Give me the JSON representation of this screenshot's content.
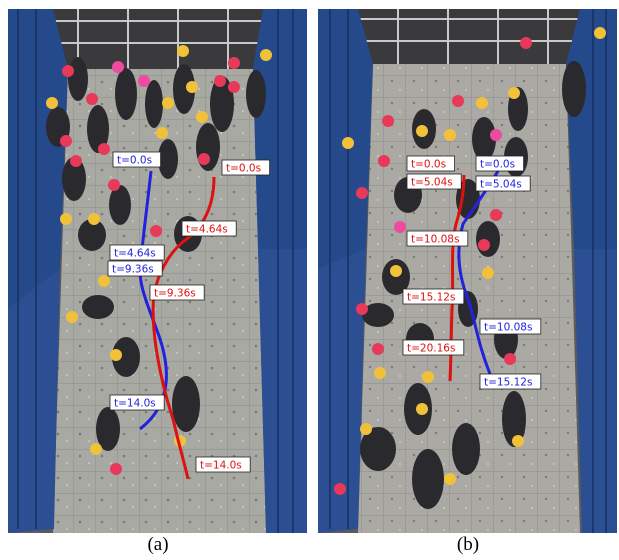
{
  "colors": {
    "participant_a": "#2222dd",
    "participant_b": "#dd1111",
    "helmet_red": "#e8395a",
    "helmet_yellow": "#f2c13a",
    "helmet_pink": "#ee4aa0",
    "wall_blue": "#244a8c",
    "floor": "#a7a7a2"
  },
  "panels": [
    {
      "caption": "(a)",
      "labels": [
        {
          "text": "t=0.0s",
          "color": "blue"
        },
        {
          "text": "t=0.0s",
          "color": "red"
        },
        {
          "text": "t=4.64s",
          "color": "red"
        },
        {
          "text": "t=4.64s",
          "color": "blue"
        },
        {
          "text": "t=9.36s",
          "color": "blue"
        },
        {
          "text": "t=9.36s",
          "color": "red"
        },
        {
          "text": "t=14.0s",
          "color": "blue"
        },
        {
          "text": "t=14.0s",
          "color": "red"
        }
      ]
    },
    {
      "caption": "(b)",
      "labels": [
        {
          "text": "t=0.0s",
          "color": "red"
        },
        {
          "text": "t=0.0s",
          "color": "blue"
        },
        {
          "text": "t=5.04s",
          "color": "red"
        },
        {
          "text": "t=5.04s",
          "color": "blue"
        },
        {
          "text": "t=10.08s",
          "color": "red"
        },
        {
          "text": "t=15.12s",
          "color": "red"
        },
        {
          "text": "t=10.08s",
          "color": "blue"
        },
        {
          "text": "t=20.16s",
          "color": "red"
        },
        {
          "text": "t=15.12s",
          "color": "blue"
        }
      ]
    }
  ]
}
